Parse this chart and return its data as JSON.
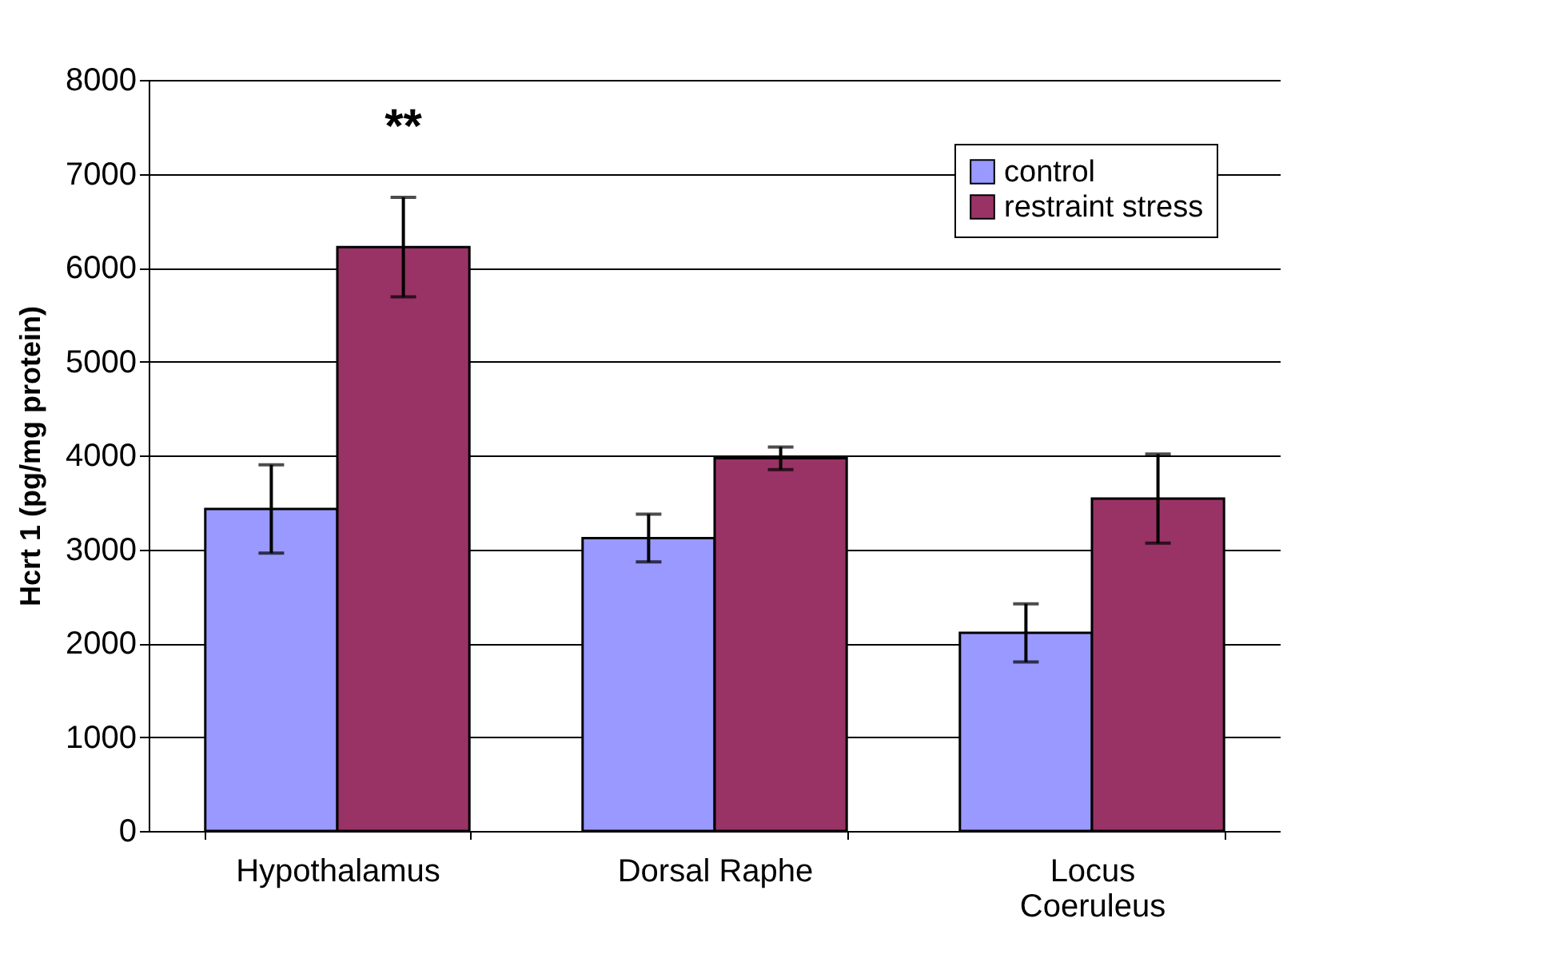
{
  "chart_data": {
    "type": "bar",
    "ylabel": "Hcrt 1 (pg/mg protein)",
    "categories": [
      "Hypothalamus",
      "Dorsal Raphe",
      "Locus Coeruleus"
    ],
    "series": [
      {
        "name": "control",
        "color": "#9999ff",
        "values": [
          3430,
          3120,
          2110
        ],
        "errors": [
          470,
          255,
          310
        ]
      },
      {
        "name": "restraint stress",
        "color": "#993366",
        "values": [
          6220,
          3970,
          3540
        ],
        "errors": [
          530,
          120,
          475
        ]
      }
    ],
    "ylim": [
      0,
      8000
    ],
    "yticks": [
      0,
      1000,
      2000,
      3000,
      4000,
      5000,
      6000,
      7000,
      8000
    ],
    "grid": "y",
    "legend": "top right",
    "annotations": [
      "**"
    ]
  }
}
